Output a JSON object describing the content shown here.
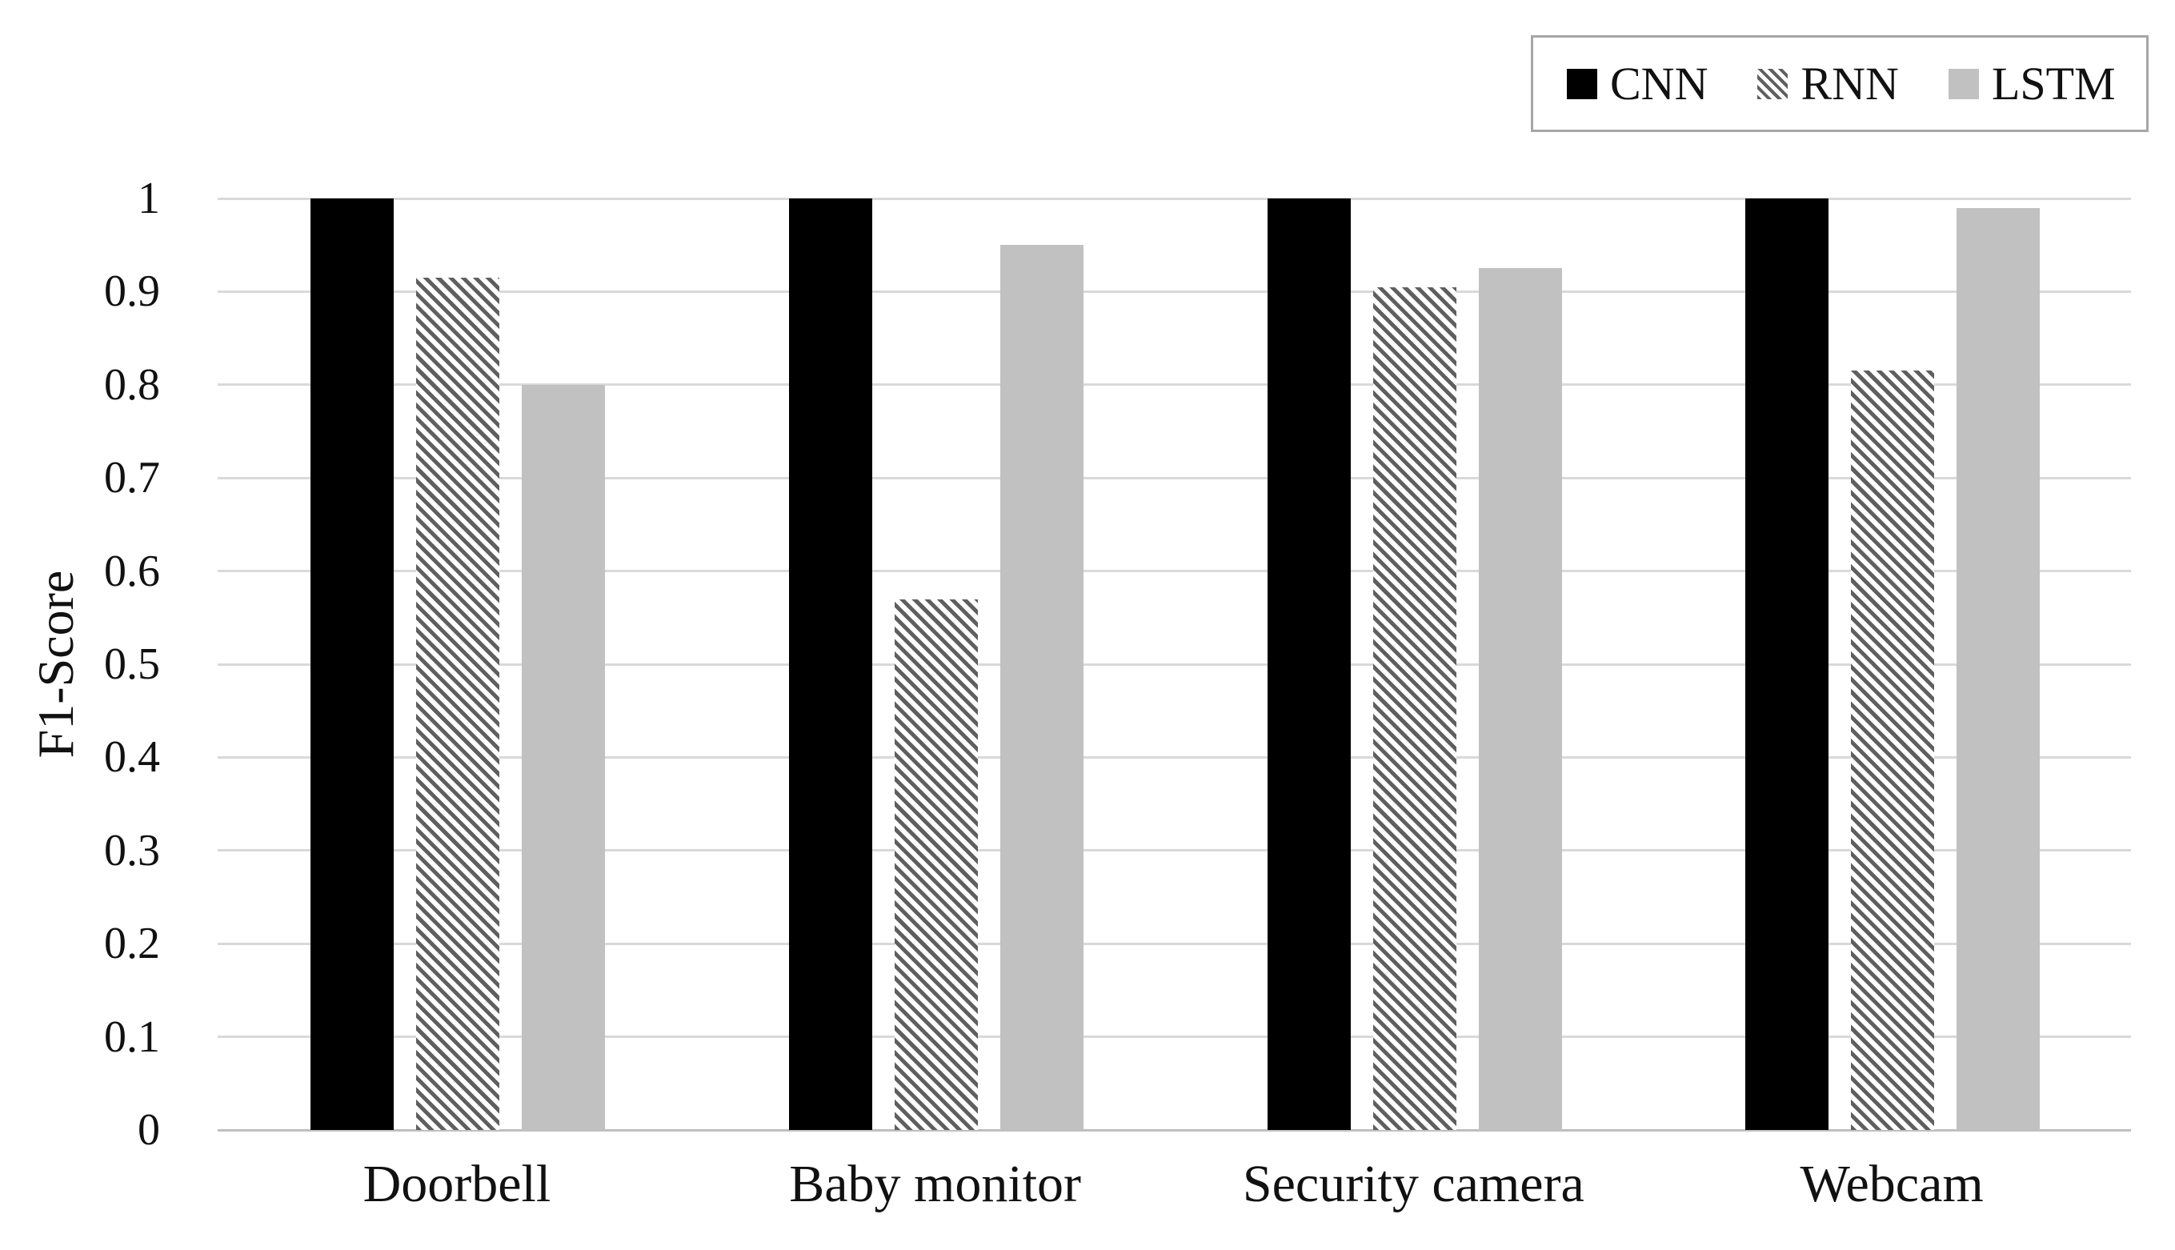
{
  "chart_data": {
    "type": "bar",
    "title": "",
    "categories": [
      "Doorbell",
      "Baby monitor",
      "Security camera",
      "Webcam"
    ],
    "series": [
      {
        "name": "CNN",
        "values": [
          1.0,
          1.0,
          1.0,
          1.0
        ]
      },
      {
        "name": "RNN",
        "values": [
          0.915,
          0.57,
          0.905,
          0.815
        ]
      },
      {
        "name": "LSTM",
        "values": [
          0.8,
          0.95,
          0.925,
          0.99
        ]
      }
    ],
    "xlabel": "",
    "ylabel": "F1-Score",
    "ylim": [
      0,
      1
    ],
    "y_ticks": [
      "1",
      "0.9",
      "0.8",
      "0.7",
      "0.6",
      "0.5",
      "0.4",
      "0.3",
      "0.2",
      "0.1",
      "0"
    ],
    "grid": "horizontal",
    "legend_position": "top-right",
    "colors": {
      "cnn_fill": "#000000",
      "rnn_stripe": "#5f5f5f",
      "lstm_fill": "#c1c1c1",
      "gridline": "#d9d9d9",
      "axis_line": "#bfbfbf",
      "legend_border": "#a6a6a6",
      "text": "#111111"
    }
  }
}
